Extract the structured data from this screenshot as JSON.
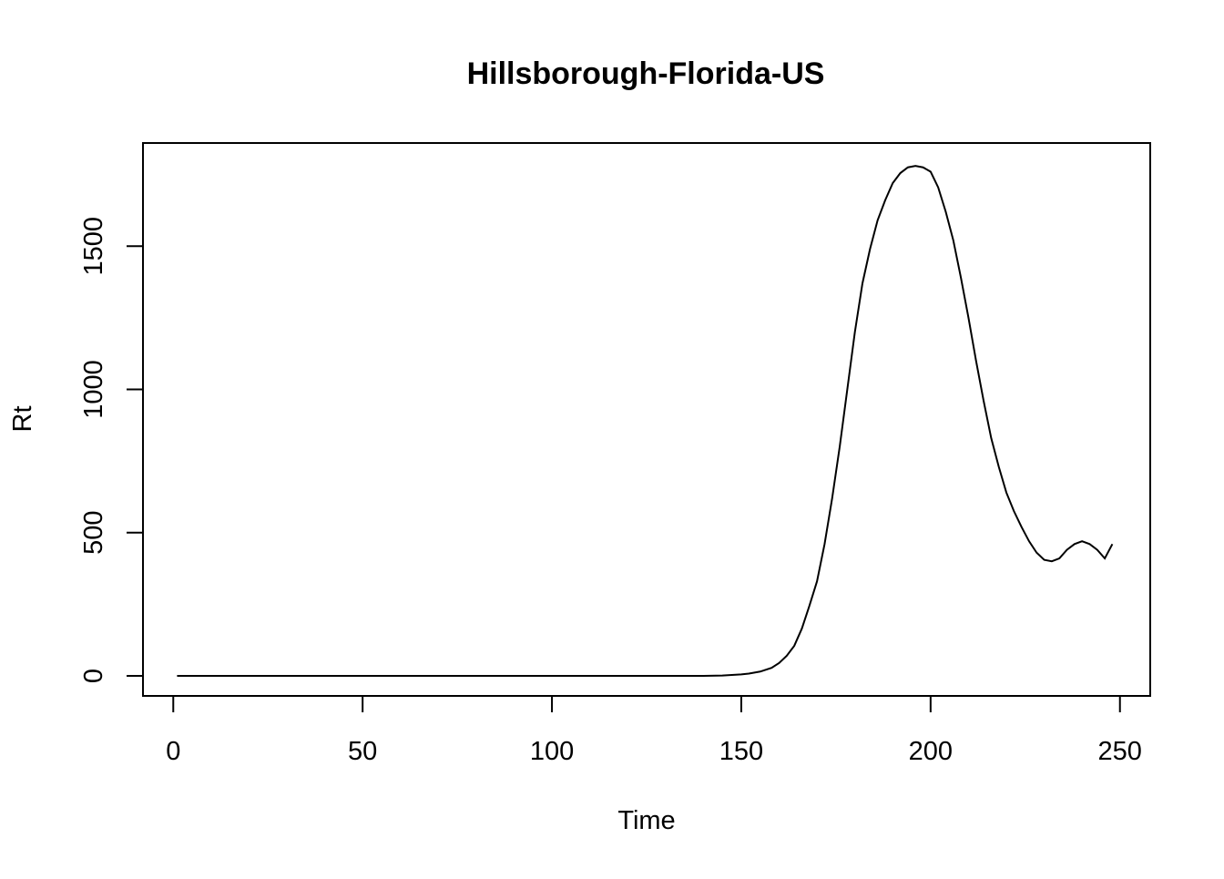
{
  "chart_data": {
    "type": "line",
    "title": "Hillsborough-Florida-US",
    "xlabel": "Time",
    "ylabel": "Rt",
    "xlim": [
      -8,
      258
    ],
    "ylim": [
      -70,
      1860
    ],
    "x_ticks": [
      0,
      50,
      100,
      150,
      200,
      250
    ],
    "y_ticks": [
      0,
      500,
      1000,
      1500
    ],
    "grid": false,
    "legend": "none",
    "line_color": "#000000",
    "series": [
      {
        "x": [
          1,
          140,
          145,
          150,
          152,
          155,
          158,
          160,
          162,
          164,
          166,
          168,
          170,
          172,
          174,
          176,
          178,
          180,
          182,
          184,
          186,
          188,
          190,
          192,
          194,
          196,
          198,
          200,
          202,
          204,
          206,
          208,
          210,
          212,
          214,
          216,
          218,
          220,
          222,
          224,
          226,
          228,
          230,
          232,
          234,
          236,
          238,
          240,
          242,
          244,
          246,
          248
        ],
        "y": [
          0,
          0,
          1,
          5,
          8,
          15,
          28,
          45,
          70,
          105,
          165,
          245,
          330,
          460,
          620,
          800,
          1000,
          1200,
          1370,
          1490,
          1590,
          1660,
          1720,
          1755,
          1775,
          1780,
          1775,
          1760,
          1705,
          1620,
          1520,
          1390,
          1250,
          1100,
          960,
          830,
          730,
          640,
          575,
          520,
          470,
          430,
          405,
          400,
          410,
          440,
          460,
          470,
          460,
          440,
          410,
          460
        ]
      }
    ]
  }
}
